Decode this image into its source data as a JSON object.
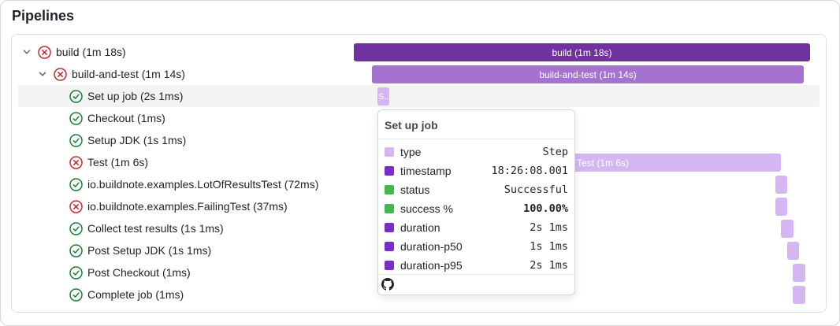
{
  "page": {
    "title": "Pipelines"
  },
  "colors": {
    "fail": "#d1242f",
    "success": "#1a7f37",
    "bar_pipeline": "#6f32a0",
    "bar_job": "#a573cf",
    "bar_step": "#d4b6f2",
    "row_highlight": "#f3f3f3"
  },
  "tree": [
    {
      "label": "build (1m 18s)",
      "status": "failure",
      "status_icon": "x-circle-icon",
      "expanded": true,
      "level": 0
    },
    {
      "label": "build-and-test (1m 14s)",
      "status": "failure",
      "status_icon": "x-circle-icon",
      "expanded": true,
      "level": 1
    },
    {
      "label": "Set up job (2s 1ms)",
      "status": "success",
      "status_icon": "check-circle-icon",
      "level": 2,
      "highlighted": true
    },
    {
      "label": "Checkout (1ms)",
      "status": "success",
      "status_icon": "check-circle-icon",
      "level": 2
    },
    {
      "label": "Setup JDK (1s 1ms)",
      "status": "success",
      "status_icon": "check-circle-icon",
      "level": 2
    },
    {
      "label": "Test (1m 6s)",
      "status": "failure",
      "status_icon": "x-circle-icon",
      "level": 2
    },
    {
      "label": "io.buildnote.examples.LotOfResultsTest (72ms)",
      "status": "success",
      "status_icon": "check-circle-icon",
      "level": 2
    },
    {
      "label": "io.buildnote.examples.FailingTest (37ms)",
      "status": "failure",
      "status_icon": "x-circle-icon",
      "level": 2
    },
    {
      "label": "Collect test results (1s 1ms)",
      "status": "success",
      "status_icon": "check-circle-icon",
      "level": 2
    },
    {
      "label": "Post Setup JDK (1s 1ms)",
      "status": "success",
      "status_icon": "check-circle-icon",
      "level": 2
    },
    {
      "label": "Post Checkout (1ms)",
      "status": "success",
      "status_icon": "check-circle-icon",
      "level": 2
    },
    {
      "label": "Complete job (1ms)",
      "status": "success",
      "status_icon": "check-circle-icon",
      "level": 2
    }
  ],
  "bars": [
    {
      "label": "build (1m 18s)"
    },
    {
      "label": "build-and-test (1m 14s)"
    },
    {
      "label": "S..."
    },
    {
      "label": ""
    },
    {
      "label": ""
    },
    {
      "label": "Test (1m 6s)"
    },
    {
      "label": ""
    },
    {
      "label": ""
    },
    {
      "label": ""
    },
    {
      "label": ""
    },
    {
      "label": ""
    },
    {
      "label": ""
    }
  ],
  "tooltip": {
    "title": "Set up job",
    "rows": [
      {
        "key": "type",
        "value": "Step",
        "color": "#d4b6f2"
      },
      {
        "key": "timestamp",
        "value": "18:26:08.001",
        "color": "#7a2ec7"
      },
      {
        "key": "status",
        "value": "Successful",
        "color": "#3fb950"
      },
      {
        "key": "success %",
        "value": "100.00%",
        "color": "#3fb950",
        "bold": true
      },
      {
        "key": "duration",
        "value": "2s 1ms",
        "color": "#7a2ec7"
      },
      {
        "key": "duration-p50",
        "value": "1s 1ms",
        "color": "#7a2ec7"
      },
      {
        "key": "duration-p95",
        "value": "2s 1ms",
        "color": "#7a2ec7"
      }
    ],
    "footer_icon": "github-icon"
  }
}
